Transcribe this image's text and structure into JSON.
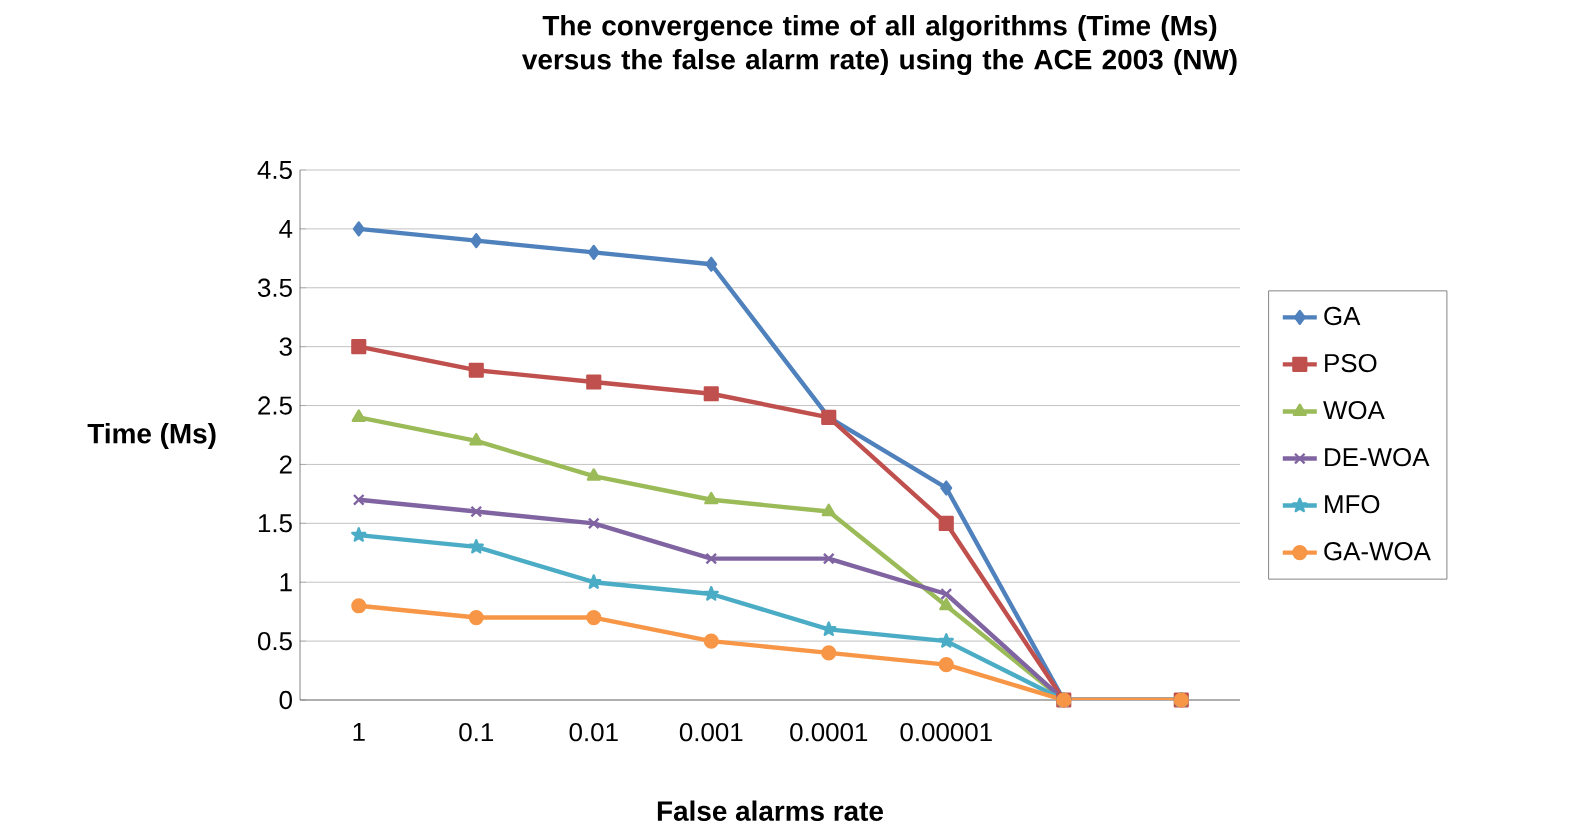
{
  "chart_data": {
    "type": "line",
    "title": "The convergence time of all algorithms (Time (Ms) versus the false alarm rate) using the ACE 2003 (NW)",
    "xlabel": "False alarms rate",
    "ylabel": "Time (Ms)",
    "categories": [
      "1",
      "0.1",
      "0.01",
      "0.001",
      "0.0001",
      "0.00001",
      null,
      null
    ],
    "ylim": [
      0,
      4.5
    ],
    "yticks": [
      0,
      0.5,
      1,
      1.5,
      2,
      2.5,
      3,
      3.5,
      4,
      4.5
    ],
    "grid": "y",
    "legend": "right",
    "series": [
      {
        "name": "GA",
        "color": "#4f81bd",
        "marker": "diamond",
        "values": [
          4,
          3.9,
          3.8,
          3.7,
          2.4,
          1.8,
          0,
          0
        ]
      },
      {
        "name": "PSO",
        "color": "#c0504d",
        "marker": "square",
        "values": [
          3,
          2.8,
          2.7,
          2.6,
          2.4,
          1.5,
          0,
          0
        ]
      },
      {
        "name": "WOA",
        "color": "#9bbb59",
        "marker": "triangle",
        "values": [
          2.4,
          2.2,
          1.9,
          1.7,
          1.6,
          0.8,
          0,
          0
        ]
      },
      {
        "name": "DE-WOA",
        "color": "#8064a2",
        "marker": "cross",
        "values": [
          1.7,
          1.6,
          1.5,
          1.2,
          1.2,
          0.9,
          0,
          0
        ]
      },
      {
        "name": "MFO",
        "color": "#4bacc6",
        "marker": "star",
        "values": [
          1.4,
          1.3,
          1,
          0.9,
          0.6,
          0.5,
          0,
          0
        ]
      },
      {
        "name": "GA-WOA",
        "color": "#f79646",
        "marker": "circle",
        "values": [
          0.8,
          0.7,
          0.7,
          0.5,
          0.4,
          0.3,
          0,
          0
        ]
      }
    ]
  }
}
